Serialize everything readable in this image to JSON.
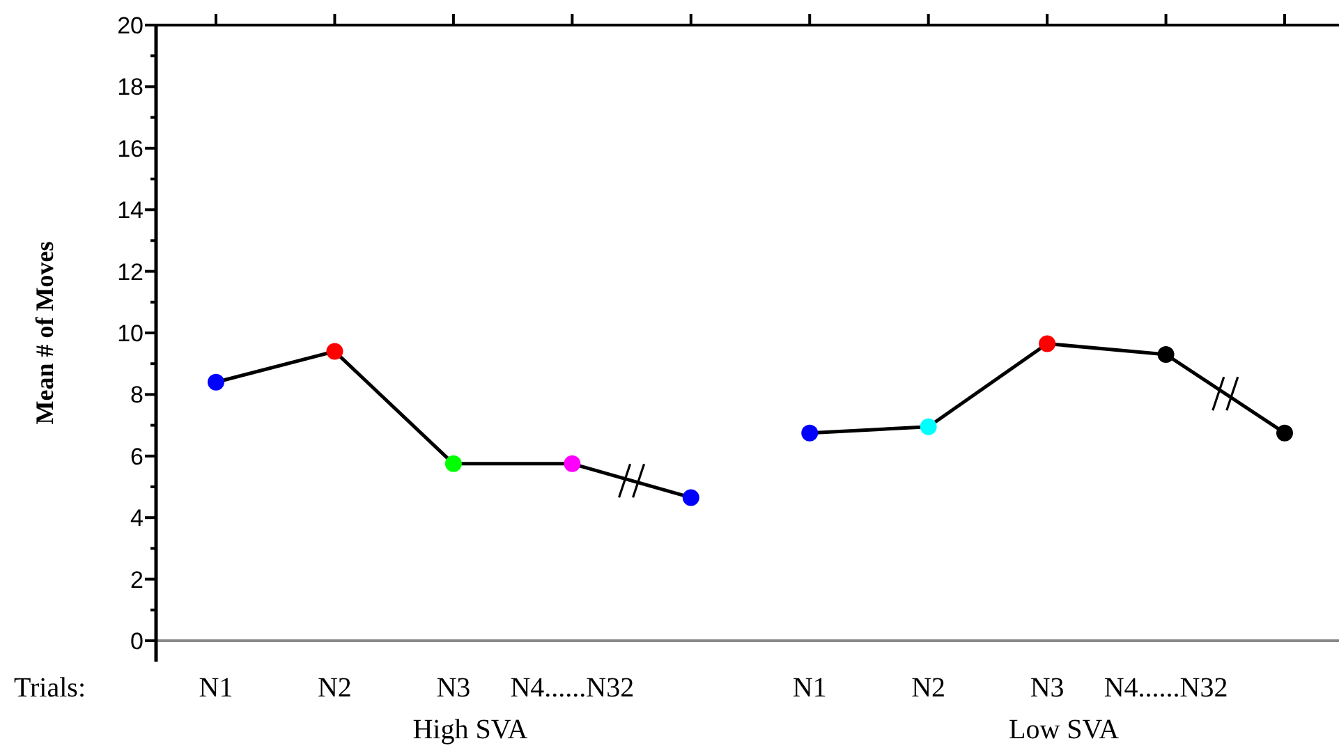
{
  "chart_data": {
    "type": "line",
    "xlabel": "Trials:",
    "ylabel": "Mean # of Moves",
    "categories": [
      "N1",
      "N2",
      "N3",
      "N4......N32",
      null,
      "N1",
      "N2",
      "N3",
      "N4......N32",
      null
    ],
    "series": [
      {
        "color": "#000000",
        "colors": [
          "#0000ff",
          "#ff0000",
          "#00ff00",
          "#ff00ff",
          "#0000ff",
          null,
          null,
          null,
          null,
          null
        ],
        "values": [
          8.4,
          9.4,
          5.75,
          5.75,
          4.65,
          null,
          null,
          null,
          null,
          null
        ]
      },
      {
        "color": "#000000",
        "colors": [
          null,
          null,
          null,
          null,
          null,
          "#0000ff",
          "#00ffff",
          "#ff0000",
          "#000000",
          "#000000"
        ],
        "values": [
          null,
          null,
          null,
          null,
          null,
          6.75,
          6.95,
          9.65,
          9.3,
          6.75
        ]
      }
    ],
    "ylim": [
      0,
      20
    ],
    "yticks": [
      0,
      {
        "value": 1,
        "label": null
      },
      2,
      {
        "value": 3,
        "label": null
      },
      4,
      {
        "value": 5,
        "label": null
      },
      6,
      {
        "value": 7,
        "label": null
      },
      8,
      {
        "value": 9,
        "label": null
      },
      10,
      {
        "value": 11,
        "label": null
      },
      12,
      {
        "value": 13,
        "label": null
      },
      14,
      {
        "value": 15,
        "label": null
      },
      16,
      {
        "value": 17,
        "label": null
      },
      18,
      {
        "value": 19,
        "label": null
      },
      20
    ],
    "marker": "circle",
    "line_style": "solid",
    "grid": false,
    "annotations": [
      "High SVA",
      "Low SVA"
    ]
  }
}
